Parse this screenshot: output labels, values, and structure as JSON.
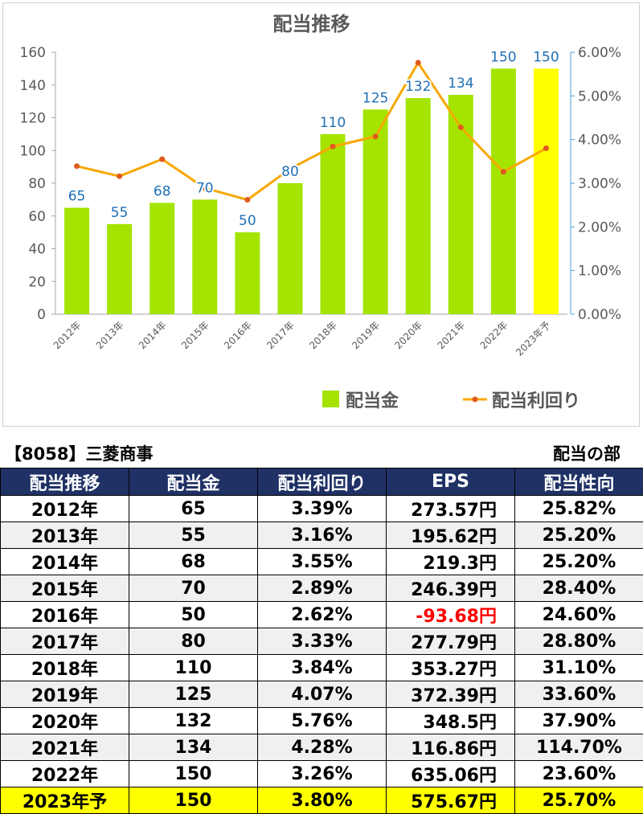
{
  "chart_data": {
    "type": "bar",
    "title": "配当推移",
    "categories": [
      "2012年",
      "2013年",
      "2014年",
      "2015年",
      "2016年",
      "2017年",
      "2018年",
      "2019年",
      "2020年",
      "2021年",
      "2022年",
      "2023年予"
    ],
    "series": [
      {
        "name": "配当金",
        "kind": "bar",
        "axis": "left",
        "values": [
          65,
          55,
          68,
          70,
          50,
          80,
          110,
          125,
          132,
          134,
          150,
          150
        ],
        "color": "#a4e400",
        "highlight_last_color": "#ffff00"
      },
      {
        "name": "配当利回り",
        "kind": "line",
        "axis": "right",
        "values": [
          3.39,
          3.16,
          3.55,
          2.89,
          2.62,
          3.33,
          3.84,
          4.07,
          5.76,
          4.28,
          3.26,
          3.8
        ],
        "color": "#f7a800",
        "marker_color": "#e05a20"
      }
    ],
    "y_left": {
      "ylim": [
        0,
        160
      ],
      "ticks": [
        "0",
        "20",
        "40",
        "60",
        "80",
        "100",
        "120",
        "140",
        "160"
      ]
    },
    "y_right": {
      "ylim": [
        0,
        6
      ],
      "ticks": [
        "0.00%",
        "1.00%",
        "2.00%",
        "3.00%",
        "4.00%",
        "5.00%",
        "6.00%"
      ]
    },
    "data_labels": [
      "65",
      "55",
      "68",
      "70",
      "50",
      "80",
      "110",
      "125",
      "132",
      "134",
      "150",
      "150"
    ],
    "legend": {
      "position": "bottom-right"
    },
    "grid": false
  },
  "header": {
    "company": "【8058】三菱商事",
    "section": "配当の部"
  },
  "table": {
    "columns": [
      "配当推移",
      "配当金",
      "配当利回り",
      "EPS",
      "配当性向"
    ],
    "rows": [
      [
        "2012年",
        "65",
        "3.39%",
        "273.57円",
        "25.82%"
      ],
      [
        "2013年",
        "55",
        "3.16%",
        "195.62円",
        "25.20%"
      ],
      [
        "2014年",
        "68",
        "3.55%",
        "219.3円",
        "25.20%"
      ],
      [
        "2015年",
        "70",
        "2.89%",
        "246.39円",
        "28.40%"
      ],
      [
        "2016年",
        "50",
        "2.62%",
        "-93.68円",
        "24.60%"
      ],
      [
        "2017年",
        "80",
        "3.33%",
        "277.79円",
        "28.80%"
      ],
      [
        "2018年",
        "110",
        "3.84%",
        "353.27円",
        "31.10%"
      ],
      [
        "2019年",
        "125",
        "4.07%",
        "372.39円",
        "33.60%"
      ],
      [
        "2020年",
        "132",
        "5.76%",
        "348.5円",
        "37.90%"
      ],
      [
        "2021年",
        "134",
        "4.28%",
        "116.86円",
        "114.70%"
      ],
      [
        "2022年",
        "150",
        "3.26%",
        "635.06円",
        "23.60%"
      ],
      [
        "2023年予",
        "150",
        "3.80%",
        "575.67円",
        "25.70%"
      ]
    ]
  }
}
